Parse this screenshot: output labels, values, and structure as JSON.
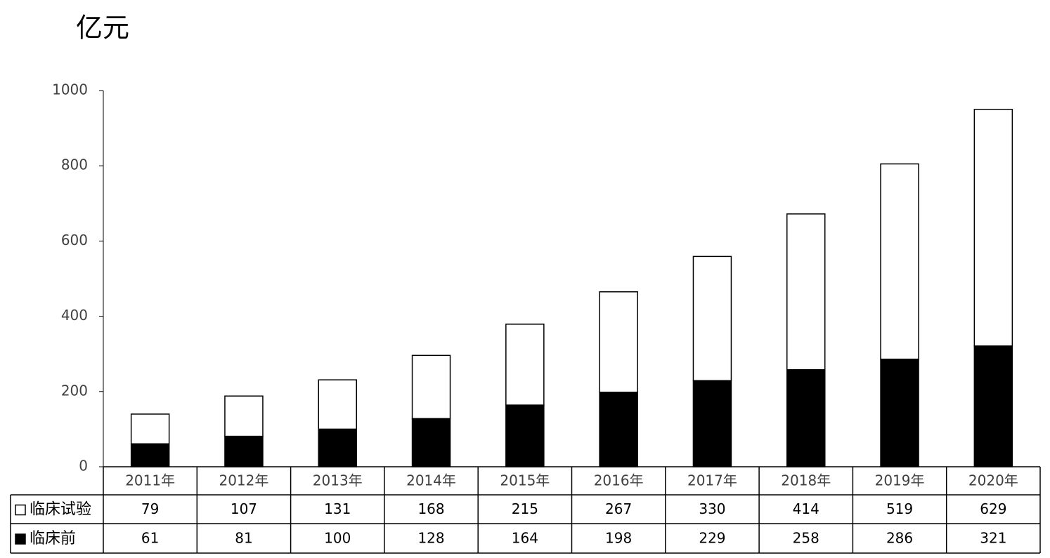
{
  "chart_data": {
    "type": "stacked_bar",
    "title": "亿元",
    "categories": [
      "2011年",
      "2012年",
      "2013年",
      "2014年",
      "2015年",
      "2016年",
      "2017年",
      "2018年",
      "2019年",
      "2020年"
    ],
    "series": [
      {
        "name": "临床试验",
        "color": "#ffffff",
        "values": [
          79,
          107,
          131,
          168,
          215,
          267,
          330,
          414,
          519,
          629
        ]
      },
      {
        "name": "临床前",
        "color": "#000000",
        "values": [
          61,
          81,
          100,
          128,
          164,
          198,
          229,
          258,
          286,
          321
        ]
      }
    ],
    "ylim": [
      0,
      1000
    ],
    "yticks": [
      0,
      200,
      400,
      600,
      800,
      1000
    ],
    "grid": false
  }
}
